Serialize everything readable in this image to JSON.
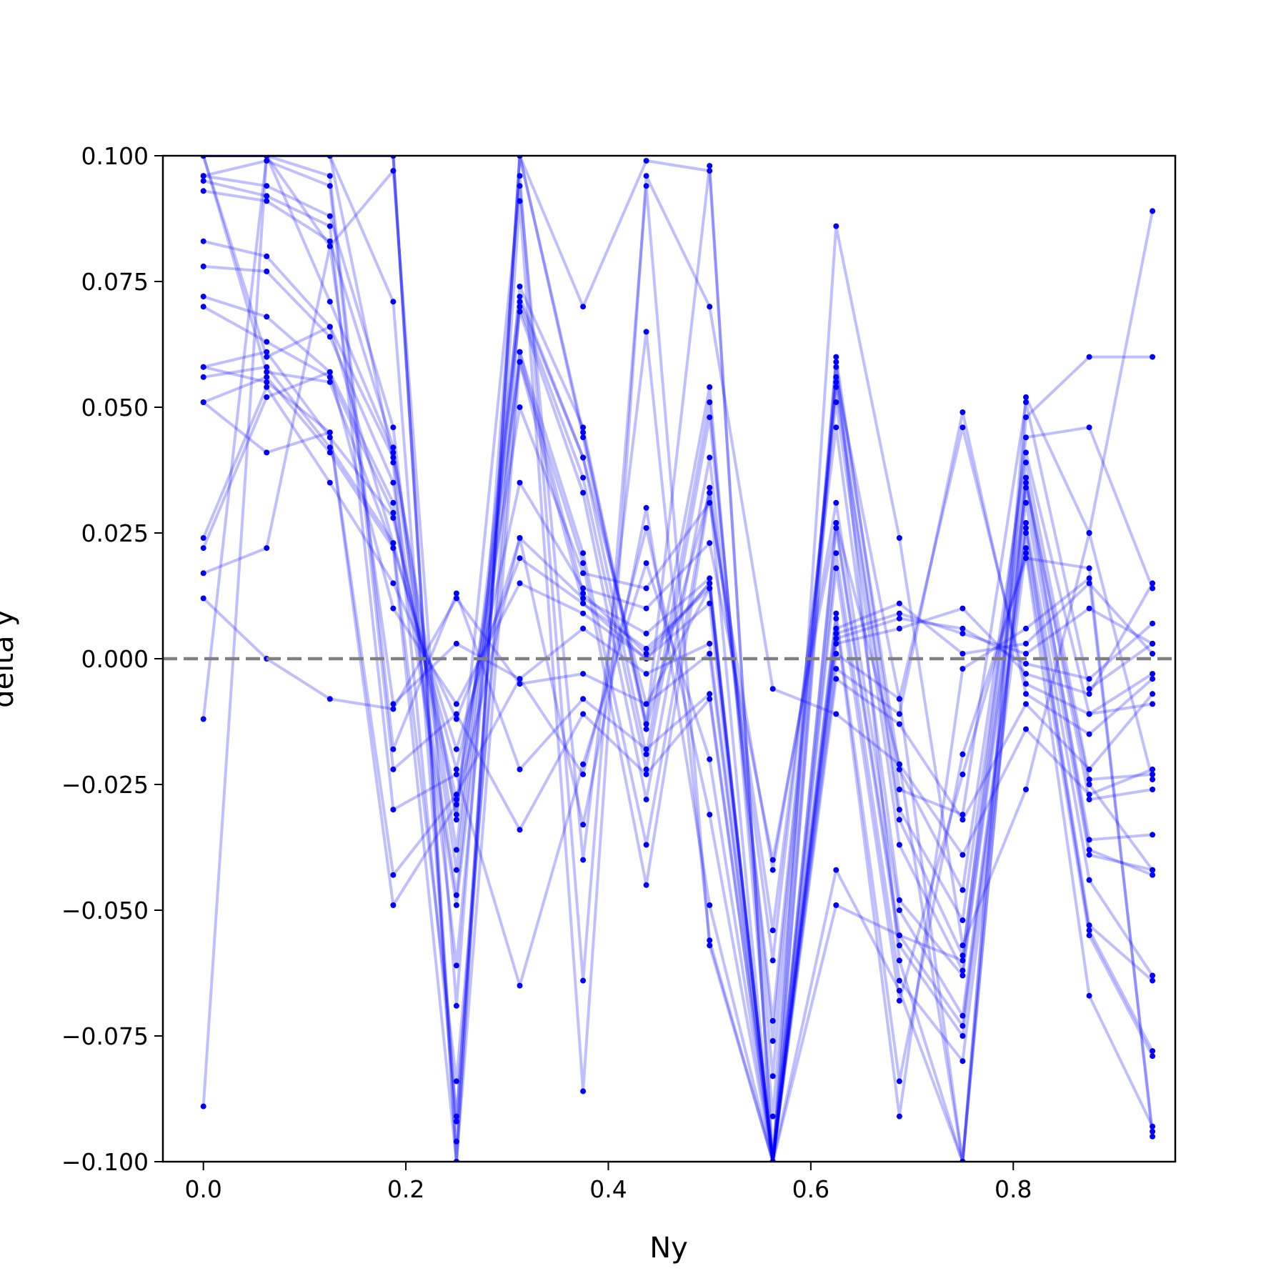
{
  "chart_data": {
    "type": "line",
    "title": "",
    "xlabel": "Ny",
    "ylabel": "delta y",
    "xlim": [
      -0.04,
      0.96
    ],
    "ylim": [
      -0.1,
      0.1
    ],
    "x_ticks": [
      0.0,
      0.2,
      0.4,
      0.6,
      0.8
    ],
    "x_tick_labels": [
      "0.0",
      "0.2",
      "0.4",
      "0.6",
      "0.8"
    ],
    "y_ticks": [
      -0.1,
      -0.075,
      -0.05,
      -0.025,
      0.0,
      0.025,
      0.05,
      0.075,
      0.1
    ],
    "y_tick_labels": [
      "−0.100",
      "−0.075",
      "−0.050",
      "−0.025",
      "0.000",
      "0.025",
      "0.050",
      "0.075",
      "0.100"
    ],
    "grid": false,
    "reference_line": {
      "y": 0.0,
      "style": "dashed",
      "color": "#808080"
    },
    "line_color": "#0000ff",
    "marker_color": "#0000ff",
    "x": [
      0.0,
      0.0625,
      0.125,
      0.1875,
      0.25,
      0.3125,
      0.375,
      0.4375,
      0.5,
      0.5625,
      0.625,
      0.6875,
      0.75,
      0.8125,
      0.875,
      0.9375
    ],
    "series": [
      {
        "values": [
          0.096,
          0.094,
          0.088,
          0.046,
          -0.061,
          0.074,
          0.046,
          -0.013,
          0.054,
          -0.091,
          0.06,
          -0.026,
          -0.031,
          0.051,
          -0.006,
          0.003
        ]
      },
      {
        "values": [
          0.093,
          0.091,
          0.083,
          0.042,
          -0.038,
          0.072,
          0.04,
          -0.019,
          0.051,
          -0.083,
          0.058,
          -0.022,
          -0.046,
          0.041,
          -0.011,
          -0.009
        ]
      },
      {
        "values": [
          0.083,
          0.08,
          0.066,
          0.04,
          -0.042,
          0.07,
          0.036,
          -0.022,
          0.048,
          -0.076,
          0.055,
          -0.03,
          -0.052,
          0.039,
          -0.024,
          -0.023
        ]
      },
      {
        "values": [
          0.078,
          0.077,
          0.064,
          0.035,
          -0.047,
          0.069,
          0.033,
          -0.028,
          0.04,
          -0.072,
          0.054,
          -0.032,
          -0.059,
          0.036,
          -0.028,
          -0.026
        ]
      },
      {
        "values": [
          0.072,
          0.068,
          0.057,
          0.031,
          -0.049,
          0.061,
          0.021,
          -0.037,
          0.034,
          -0.06,
          0.051,
          -0.037,
          -0.062,
          0.034,
          -0.036,
          -0.035
        ]
      },
      {
        "values": [
          0.07,
          0.063,
          0.056,
          0.029,
          -0.031,
          0.059,
          0.019,
          -0.045,
          0.033,
          -0.054,
          0.046,
          -0.048,
          -0.063,
          0.031,
          -0.039,
          -0.042
        ]
      },
      {
        "values": [
          0.058,
          0.061,
          0.044,
          0.028,
          -0.028,
          0.05,
          0.017,
          0.014,
          0.031,
          -0.042,
          0.031,
          -0.05,
          -0.071,
          0.027,
          -0.044,
          -0.063
        ]
      },
      {
        "values": [
          0.056,
          0.058,
          0.042,
          0.023,
          -0.022,
          0.035,
          0.014,
          0.01,
          0.023,
          -0.04,
          0.027,
          -0.055,
          -0.073,
          0.026,
          -0.053,
          -0.064
        ]
      },
      {
        "values": [
          0.051,
          0.056,
          0.041,
          0.022,
          -0.018,
          0.024,
          0.012,
          0.005,
          0.016,
          -0.1,
          0.026,
          -0.057,
          -0.075,
          0.025,
          -0.054,
          -0.078
        ]
      },
      {
        "values": [
          0.024,
          0.054,
          0.035,
          0.015,
          -0.012,
          0.02,
          0.011,
          0.002,
          0.014,
          -0.1,
          0.021,
          -0.064,
          -0.08,
          0.022,
          -0.055,
          -0.079
        ]
      },
      {
        "values": [
          0.022,
          0.052,
          0.057,
          0.01,
          -0.009,
          0.015,
          0.009,
          0.0,
          0.011,
          -0.1,
          0.018,
          -0.068,
          -0.023,
          0.021,
          -0.067,
          -0.093
        ]
      },
      {
        "values": [
          0.017,
          0.022,
          0.082,
          -0.009,
          0.003,
          -0.004,
          0.006,
          -0.003,
          0.003,
          -0.1,
          0.009,
          -0.084,
          -0.019,
          0.02,
          0.018,
          -0.095
        ]
      },
      {
        "values": [
          0.012,
          0.0,
          -0.008,
          -0.01,
          0.012,
          -0.005,
          -0.003,
          -0.009,
          0.001,
          -0.1,
          0.008,
          -0.091,
          -0.002,
          0.006,
          0.016,
          -0.094
        ]
      },
      {
        "values": [
          -0.012,
          0.1,
          0.096,
          -0.018,
          0.013,
          -0.022,
          -0.008,
          -0.018,
          -0.007,
          -0.1,
          0.006,
          0.011,
          0.001,
          0.003,
          0.015,
          0.001
        ]
      },
      {
        "values": [
          0.096,
          0.099,
          0.094,
          -0.022,
          -0.011,
          -0.034,
          -0.011,
          -0.023,
          -0.008,
          -0.1,
          0.005,
          0.009,
          0.005,
          0.001,
          0.01,
          0.003
        ]
      },
      {
        "values": [
          0.095,
          0.092,
          0.086,
          -0.03,
          -0.023,
          -0.065,
          -0.021,
          0.019,
          -0.02,
          -0.1,
          0.004,
          0.008,
          0.006,
          -0.001,
          -0.004,
          0.007
        ]
      },
      {
        "values": [
          0.058,
          0.055,
          0.045,
          -0.043,
          -0.027,
          -0.004,
          -0.023,
          0.026,
          -0.031,
          -0.1,
          0.003,
          0.006,
          0.01,
          -0.003,
          -0.007,
          0.015
        ]
      },
      {
        "values": [
          0.051,
          0.041,
          0.045,
          -0.049,
          -0.029,
          0.024,
          -0.033,
          0.03,
          -0.049,
          -0.1,
          0.001,
          -0.008,
          0.046,
          -0.005,
          -0.011,
          -0.003
        ]
      },
      {
        "values": [
          -0.089,
          0.1,
          0.071,
          0.041,
          -0.032,
          0.094,
          -0.04,
          0.065,
          -0.056,
          -0.1,
          -0.002,
          -0.011,
          0.049,
          -0.007,
          -0.015,
          -0.004
        ]
      },
      {
        "values": [
          0.1,
          0.1,
          0.082,
          0.097,
          -0.069,
          0.096,
          -0.064,
          0.094,
          -0.057,
          -0.1,
          -0.004,
          -0.013,
          -0.032,
          -0.009,
          -0.022,
          -0.007
        ]
      },
      {
        "values": [
          0.1,
          0.1,
          0.1,
          0.071,
          -0.092,
          0.091,
          -0.086,
          0.096,
          0.07,
          -0.006,
          -0.011,
          -0.021,
          -0.039,
          -0.014,
          -0.027,
          -0.022
        ]
      },
      {
        "values": [
          0.1,
          0.1,
          0.1,
          0.1,
          -0.096,
          0.1,
          0.07,
          0.099,
          0.097,
          -0.1,
          0.086,
          0.024,
          -0.057,
          -0.026,
          0.025,
          0.089
        ]
      },
      {
        "values": [
          0.1,
          0.1,
          0.1,
          0.1,
          -0.1,
          0.1,
          0.045,
          -0.013,
          0.098,
          -0.1,
          -0.042,
          -0.066,
          -0.1,
          0.048,
          0.06,
          0.06
        ]
      },
      {
        "values": [
          0.1,
          0.1,
          0.1,
          0.1,
          -0.1,
          0.1,
          0.044,
          -0.014,
          0.033,
          -0.1,
          -0.049,
          -0.055,
          -0.06,
          0.044,
          0.046,
          0.014
        ]
      },
      {
        "values": [
          0.1,
          0.1,
          0.1,
          0.039,
          -0.091,
          0.071,
          0.04,
          -0.009,
          0.014,
          -0.1,
          0.059,
          -0.06,
          -0.1,
          0.052,
          0.025,
          -0.024
        ]
      },
      {
        "values": [
          0.1,
          0.06,
          0.066,
          0.023,
          -0.084,
          0.061,
          0.013,
          0.001,
          0.015,
          -0.1,
          0.056,
          -0.008,
          -0.1,
          0.036,
          -0.038,
          -0.043
        ]
      },
      {
        "values": [
          0.1,
          0.057,
          0.055,
          0.022,
          -0.1,
          0.059,
          0.011,
          0.0,
          0.015,
          -0.1,
          0.027,
          -0.021,
          -0.1,
          0.035,
          -0.025,
          -0.042
        ]
      }
    ]
  }
}
